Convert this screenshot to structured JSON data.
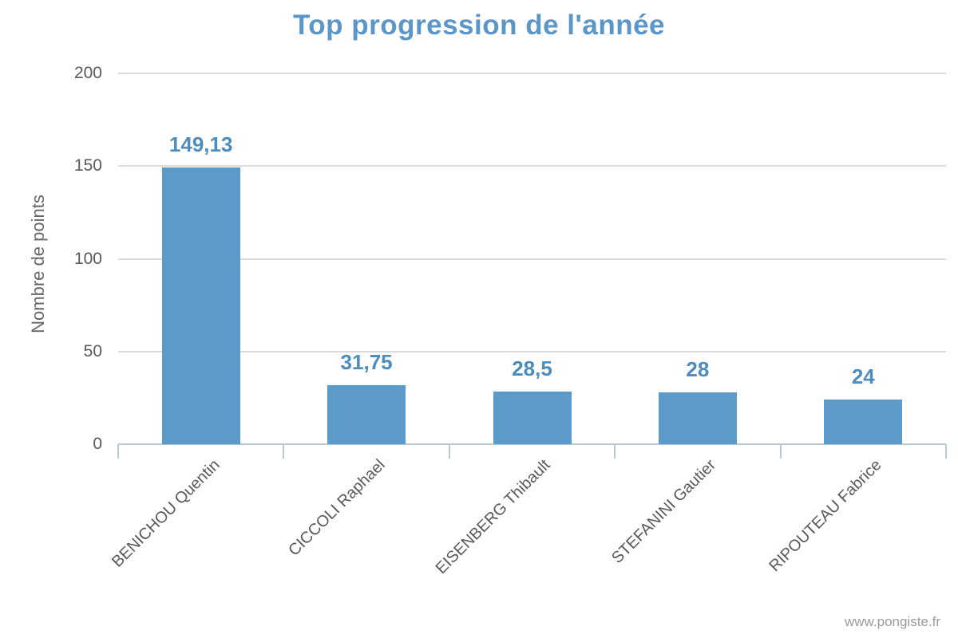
{
  "page": {
    "background": "#ffffff",
    "footer": "www.pongiste.fr"
  },
  "chart_data": {
    "type": "bar",
    "title": "Top progression de l'année",
    "xlabel": "",
    "ylabel": "Nombre de points",
    "categories": [
      "BENICHOU Quentin",
      "CICCOLI Raphael",
      "EISENBERG Thibault",
      "STEFANINI Gautier",
      "RIPOUTEAU Fabrice"
    ],
    "values": [
      149.13,
      31.75,
      28.5,
      28,
      24
    ],
    "value_labels": [
      "149,13",
      "31,75",
      "28,5",
      "28",
      "24"
    ],
    "ylim": [
      0,
      200
    ],
    "yticks": [
      0,
      50,
      100,
      150,
      200
    ],
    "grid": true,
    "legend": false,
    "colors": {
      "bar": "#5b9ac9",
      "title": "#5a96c8",
      "data_label": "#4e8cbc",
      "grid": "#d9d9d9",
      "axis": "#b8c8d5",
      "tick_label": "#58595b",
      "axis_title": "#666666",
      "footer": "#9a9a9a"
    }
  }
}
